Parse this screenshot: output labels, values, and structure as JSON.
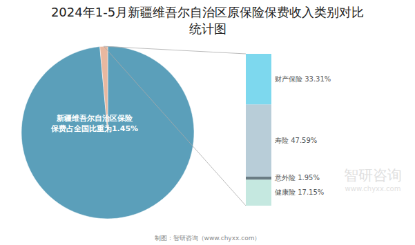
{
  "chart_data": [
    {
      "type": "pie",
      "title": "2024年1-5月新疆维吾尔自治区原保险保费收入类别对比",
      "subtitle": "统计图",
      "values": [
        98.55,
        1.45
      ],
      "colors": [
        "#5b9fba",
        "#e8b8a0"
      ],
      "annotations": [
        "新疆维吾尔自治区保险\n保费占全国比重为1.45%",
        "制图：智研咨询（www.chyxx.com）"
      ]
    },
    {
      "type": "bar",
      "stacked": true,
      "data_labels": true,
      "tick_labels": false,
      "categories": [
        null
      ],
      "ylim": [
        0,
        100
      ],
      "series": [
        {
          "name": "健康险",
          "color": "#c5e8e0",
          "values": [
            17.15
          ],
          "value_labels": [
            "健康险 17.15%"
          ]
        },
        {
          "name": "意外险",
          "color": "#6a7c84",
          "values": [
            1.95
          ],
          "value_labels": [
            "意外险 1.95%"
          ]
        },
        {
          "name": "寿险",
          "color": "#b8cdd8",
          "values": [
            47.59
          ],
          "value_labels": [
            "寿险 47.59%"
          ]
        },
        {
          "name": "财产保险",
          "color": "#7dd8ee",
          "values": [
            33.31
          ],
          "value_labels": [
            "财产保险 33.31%"
          ]
        }
      ],
      "annotations": [
        "智研咨询",
        "www.chyxx.com"
      ]
    }
  ]
}
